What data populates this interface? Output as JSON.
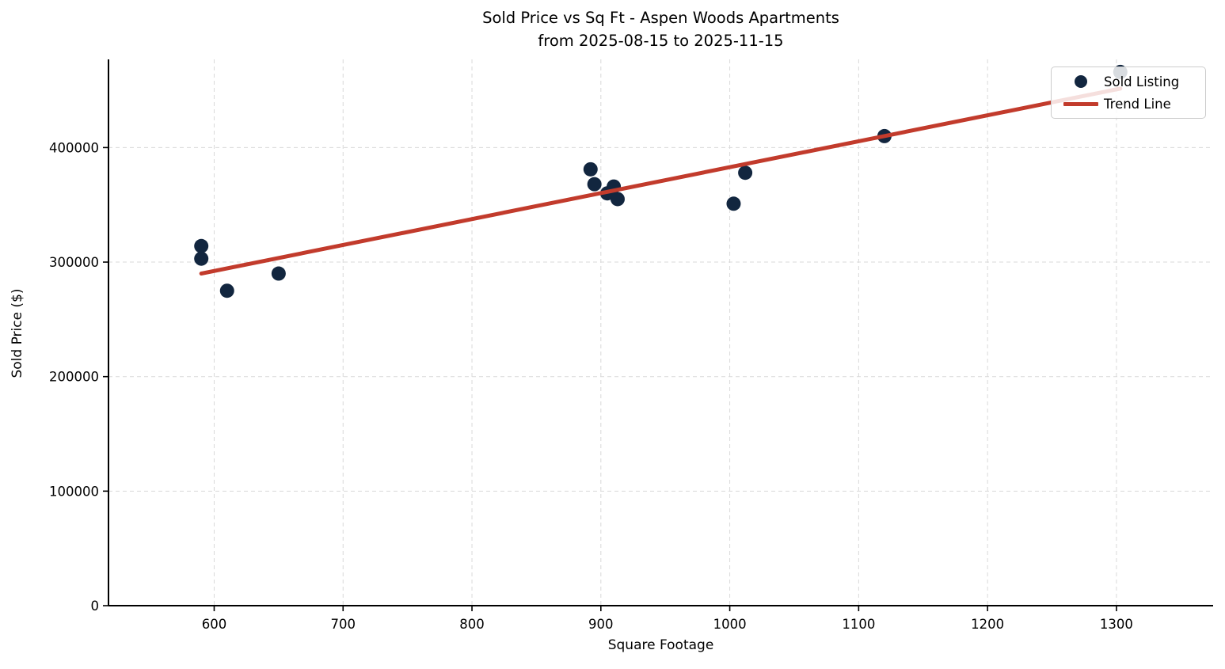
{
  "chart_data": {
    "type": "scatter",
    "title": "Sold Price vs Sq Ft - Aspen Woods Apartments",
    "subtitle": "from 2025-08-15 to 2025-11-15",
    "xlabel": "Square Footage",
    "ylabel": "Sold Price ($)",
    "xlim": [
      518,
      1375
    ],
    "ylim": [
      0,
      477000
    ],
    "x_ticks": [
      600,
      700,
      800,
      900,
      1000,
      1100,
      1200,
      1300
    ],
    "y_ticks": [
      0,
      100000,
      200000,
      300000,
      400000
    ],
    "grid": true,
    "grid_style": "dashed",
    "legend_position": "upper right",
    "colors": {
      "point": "#12263f",
      "trend": "#c23b2c",
      "grid": "#d9d9d9",
      "spine": "#000000",
      "text": "#000000"
    },
    "series": [
      {
        "name": "Sold Listing",
        "kind": "scatter",
        "color": "#12263f",
        "points": [
          {
            "x": 590,
            "y": 314000
          },
          {
            "x": 590,
            "y": 303000
          },
          {
            "x": 610,
            "y": 275000
          },
          {
            "x": 650,
            "y": 290000
          },
          {
            "x": 892,
            "y": 381000
          },
          {
            "x": 895,
            "y": 368000
          },
          {
            "x": 905,
            "y": 360000
          },
          {
            "x": 910,
            "y": 366000
          },
          {
            "x": 913,
            "y": 355000
          },
          {
            "x": 1003,
            "y": 351000
          },
          {
            "x": 1012,
            "y": 378000
          },
          {
            "x": 1120,
            "y": 410000
          },
          {
            "x": 1303,
            "y": 466000
          }
        ]
      },
      {
        "name": "Trend Line",
        "kind": "line",
        "color": "#c23b2c",
        "points": [
          {
            "x": 590,
            "y": 290000
          },
          {
            "x": 1303,
            "y": 451500
          }
        ]
      }
    ]
  }
}
